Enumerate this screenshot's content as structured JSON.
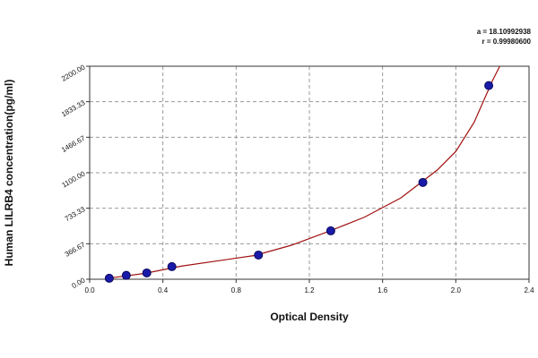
{
  "chart_data": {
    "type": "scatter",
    "x_label": "Optical Density",
    "y_label": "Human LILRB4 concentration(pg/ml)",
    "annotations": [
      "a = 18.10992938",
      "r = 0.99980600"
    ],
    "x": [
      0.107,
      0.2,
      0.312,
      0.449,
      0.922,
      1.317,
      1.82,
      2.18
    ],
    "values": [
      10,
      40,
      65,
      130,
      250,
      500,
      1000,
      2000
    ],
    "color": "#1a1aa8",
    "fit_curve": {
      "color": "#a01010",
      "x": [
        0.1,
        0.3,
        0.5,
        0.7,
        0.9,
        1.1,
        1.3,
        1.5,
        1.7,
        1.9,
        2.0,
        2.1,
        2.2,
        2.24
      ],
      "y": [
        10,
        60,
        135,
        190,
        245,
        350,
        490,
        640,
        840,
        1130,
        1320,
        1620,
        2050,
        2200
      ]
    },
    "xlim": [
      0,
      2.4
    ],
    "xticks": [
      {
        "value": 0,
        "label": "0.0"
      },
      0.4,
      0.8,
      1.2,
      1.6,
      {
        "value": 2,
        "label": "2.0"
      },
      2.4
    ],
    "ylim": [
      0,
      2200
    ],
    "yticks": [
      {
        "value": 0,
        "label": "0.00"
      },
      {
        "value": 366.67,
        "label": "366.67"
      },
      {
        "value": 733.33,
        "label": "733.33"
      },
      {
        "value": 1100,
        "label": "1100.00"
      },
      {
        "value": 1466.67,
        "label": "1466.67"
      },
      {
        "value": 1833.33,
        "label": "1833.33"
      },
      {
        "value": 2200,
        "label": "2200.00"
      }
    ],
    "grid": true
  }
}
